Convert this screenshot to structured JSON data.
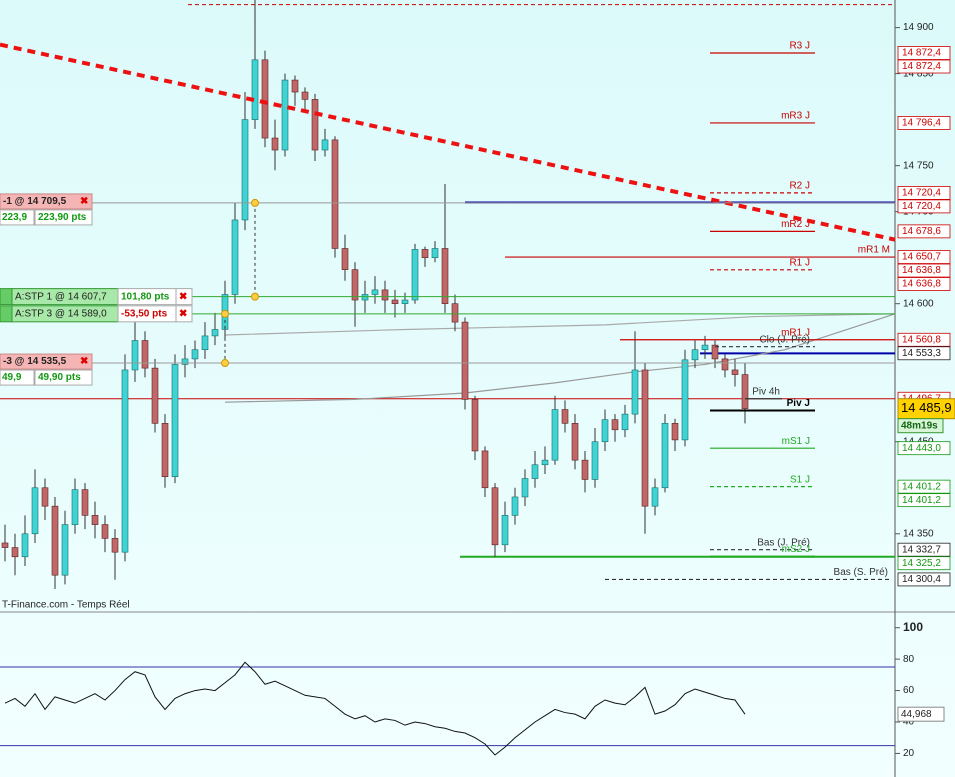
{
  "chart_data": {
    "type": "candlestick",
    "ylim": [
      14265,
      14930
    ],
    "yticks": [
      {
        "value": 14900,
        "label": "14 900"
      },
      {
        "value": 14850,
        "label": "14 850"
      },
      {
        "value": 14750,
        "label": "14 750"
      },
      {
        "value": 14700,
        "label": "14 700"
      },
      {
        "value": 14600,
        "label": "14 600"
      },
      {
        "value": 14450,
        "label": "14 450"
      },
      {
        "value": 14350,
        "label": "14 350"
      }
    ],
    "up_color": "#3fd3d3",
    "down_color": "#c06868",
    "candles": {
      "open": [
        14340,
        14335,
        14325,
        14350,
        14400,
        14380,
        14305,
        14360,
        14398,
        14370,
        14360,
        14345,
        14330,
        14528,
        14560,
        14530,
        14470,
        14412,
        14534,
        14540,
        14550,
        14565,
        14572,
        14610,
        14691,
        14800,
        14865,
        14780,
        14767,
        14843,
        14830,
        14822,
        14767,
        14778,
        14660,
        14637,
        14604,
        14610,
        14615,
        14604,
        14600,
        14604,
        14659,
        14650,
        14660,
        14600,
        14580,
        14496,
        14440,
        14400,
        14338,
        14370,
        14390,
        14410,
        14425,
        14430,
        14485,
        14470,
        14430,
        14409,
        14450,
        14474,
        14463,
        14480,
        14528,
        14380,
        14400,
        14470,
        14452,
        14539,
        14550,
        14555,
        14540,
        14528,
        14523
      ],
      "high": [
        14360,
        14350,
        14370,
        14420,
        14410,
        14390,
        14375,
        14410,
        14405,
        14385,
        14370,
        14355,
        14545,
        14580,
        14570,
        14540,
        14480,
        14545,
        14555,
        14560,
        14580,
        14590,
        14625,
        14710,
        14830,
        14930,
        14875,
        14800,
        14850,
        14848,
        14835,
        14828,
        14790,
        14782,
        14675,
        14645,
        14625,
        14630,
        14625,
        14615,
        14612,
        14665,
        14662,
        14668,
        14730,
        14610,
        14585,
        14500,
        14445,
        14405,
        14385,
        14400,
        14420,
        14440,
        14445,
        14500,
        14495,
        14480,
        14440,
        14465,
        14485,
        14480,
        14490,
        14570,
        14535,
        14410,
        14480,
        14475,
        14550,
        14560,
        14565,
        14560,
        14545,
        14540,
        14535
      ],
      "low": [
        14320,
        14305,
        14315,
        14340,
        14365,
        14290,
        14295,
        14350,
        14355,
        14345,
        14330,
        14300,
        14320,
        14515,
        14520,
        14460,
        14400,
        14405,
        14520,
        14530,
        14540,
        14555,
        14560,
        14600,
        14680,
        14790,
        14770,
        14745,
        14760,
        14815,
        14810,
        14755,
        14760,
        14650,
        14625,
        14575,
        14590,
        14600,
        14590,
        14585,
        14590,
        14600,
        14640,
        14645,
        14590,
        14570,
        14485,
        14430,
        14390,
        14325,
        14330,
        14360,
        14380,
        14400,
        14415,
        14425,
        14460,
        14420,
        14395,
        14400,
        14440,
        14450,
        14455,
        14470,
        14350,
        14370,
        14395,
        14440,
        14445,
        14530,
        14540,
        14530,
        14520,
        14510,
        14470
      ],
      "close": [
        14335,
        14325,
        14350,
        14400,
        14380,
        14305,
        14360,
        14398,
        14370,
        14360,
        14345,
        14330,
        14528,
        14560,
        14530,
        14470,
        14412,
        14534,
        14540,
        14550,
        14565,
        14572,
        14610,
        14691,
        14800,
        14865,
        14780,
        14767,
        14843,
        14830,
        14822,
        14767,
        14778,
        14660,
        14637,
        14604,
        14610,
        14615,
        14604,
        14600,
        14604,
        14659,
        14650,
        14660,
        14600,
        14580,
        14496,
        14440,
        14400,
        14338,
        14370,
        14390,
        14410,
        14425,
        14430,
        14485,
        14470,
        14430,
        14409,
        14450,
        14474,
        14463,
        14480,
        14528,
        14380,
        14400,
        14470,
        14452,
        14539,
        14550,
        14555,
        14540,
        14528,
        14523,
        14486
      ]
    },
    "trendline": {
      "x": [
        -0.5,
        89
      ],
      "values": [
        14881.5,
        14669.6
      ],
      "color": "#ee1111"
    },
    "averages": [
      {
        "color": "#999999",
        "x": [
          22,
          35,
          46,
          55,
          63,
          70,
          78,
          89
        ],
        "values": [
          14493,
          14496,
          14503,
          14514,
          14526,
          14534,
          14550,
          14589
        ]
      },
      {
        "color": "#aaaaaa",
        "x": [
          22,
          40,
          60,
          75,
          89
        ],
        "values": [
          14566,
          14572,
          14577,
          14586,
          14589
        ]
      }
    ],
    "lines": [
      {
        "value": 14925,
        "color": "#cc0000",
        "style": "dashed"
      },
      {
        "value": 14710,
        "color": "#0000aa",
        "style": "solid",
        "width": 2
      },
      {
        "value": 14546,
        "color": "#0000aa",
        "style": "solid",
        "width": 2
      },
      {
        "value": 14325,
        "color": "#22aa22",
        "style": "solid",
        "width": 2
      },
      {
        "value": 14496.7,
        "color": "#cc0000",
        "style": "solid"
      }
    ],
    "levels": [
      {
        "name": "R3 J",
        "value": 14872.4,
        "color": "#cc0000",
        "style": "solid"
      },
      {
        "name": "mR3 J",
        "value": 14796.4,
        "color": "#cc0000",
        "style": "solid"
      },
      {
        "name": "R2 J",
        "value": 14720.4,
        "color": "#cc0000",
        "style": "dashed"
      },
      {
        "name": "mR2 J",
        "value": 14678.6,
        "color": "#cc0000",
        "style": "solid"
      },
      {
        "name": "mR1 M",
        "value": 14650.7,
        "color": "#cc0000",
        "style": "solid"
      },
      {
        "name": "R1 J",
        "value": 14636.8,
        "color": "#cc0000",
        "style": "dashed"
      },
      {
        "name": "mR1 J",
        "value": 14560.8,
        "color": "#cc0000",
        "style": "solid"
      },
      {
        "name": "Clo (J. Pré)",
        "value": 14553.3,
        "color": "#333333",
        "style": "dashed"
      },
      {
        "name": "Piv 4h",
        "value": 14496.7,
        "color": "#333333",
        "style": "solid"
      },
      {
        "name": "Piv J",
        "value": 14484,
        "color": "#000000",
        "style": "solid"
      },
      {
        "name": "mS1 J",
        "value": 14443.0,
        "color": "#22aa22",
        "style": "solid"
      },
      {
        "name": "S1 J",
        "value": 14401.2,
        "color": "#22aa22",
        "style": "dashed"
      },
      {
        "name": "Bas (J. Pré)",
        "value": 14332.7,
        "color": "#333333",
        "style": "dashed"
      },
      {
        "name": "mS2 J",
        "value": 14325.2,
        "color": "#22aa22",
        "style": "solid"
      },
      {
        "name": "Bas (S. Pré)",
        "value": 14300.4,
        "color": "#333333",
        "style": "dashed"
      }
    ],
    "price_labels": [
      {
        "value": 14872.4,
        "label": "14 872,4",
        "color": "#cc0000"
      },
      {
        "value": 14872.4,
        "label": "14 872,4",
        "color": "#cc0000"
      },
      {
        "value": 14796.4,
        "label": "14 796,4",
        "color": "#cc0000"
      },
      {
        "value": 14720.4,
        "label": "14 720,4",
        "color": "#cc0000"
      },
      {
        "value": 14720.4,
        "label": "14 720,4",
        "color": "#cc0000"
      },
      {
        "value": 14678.6,
        "label": "14 678,6",
        "color": "#cc0000"
      },
      {
        "value": 14650.7,
        "label": "14 650,7",
        "color": "#cc0000"
      },
      {
        "value": 14636.8,
        "label": "14 636,8",
        "color": "#cc0000"
      },
      {
        "value": 14636.8,
        "label": "14 636,8",
        "color": "#cc0000"
      },
      {
        "value": 14560.8,
        "label": "14 560,8",
        "color": "#cc0000"
      },
      {
        "value": 14553.3,
        "label": "14 553,3",
        "color": "#222222"
      },
      {
        "value": 14496.7,
        "label": "14 496,7",
        "color": "#cc0000"
      },
      {
        "value": 14443.0,
        "label": "14 443,0",
        "color": "#119911"
      },
      {
        "value": 14401.2,
        "label": "14 401,2",
        "color": "#119911"
      },
      {
        "value": 14401.2,
        "label": "14 401,2",
        "color": "#119911"
      },
      {
        "value": 14332.7,
        "label": "14 332,7",
        "color": "#222222"
      },
      {
        "value": 14325.2,
        "label": "14 325,2",
        "color": "#119911"
      },
      {
        "value": 14300.4,
        "label": "14 300,4",
        "color": "#222222"
      }
    ],
    "current_price": {
      "value": 14485.9,
      "label": "14 485,9",
      "timer": "48m19s"
    },
    "orders": [
      {
        "kind": "position",
        "label": "-1 @ 14 709,5",
        "value": 14709.5,
        "qty": "223,9",
        "pts": "223,90 pts"
      },
      {
        "kind": "stop",
        "label": "A:STP 1 @ 14 607,7",
        "value": 14607.7,
        "pts": "101,80 pts"
      },
      {
        "kind": "stop",
        "label": "A:STP 3 @ 14 589,0",
        "value": 14589.0,
        "pts": "-53,50 pts"
      },
      {
        "kind": "position",
        "label": "-3 @ 14 535,5",
        "value": 14535.5,
        "qty": "49,9",
        "pts": "49,90 pts"
      }
    ],
    "source": "T-Finance.com - Temps Réel",
    "oscillator": {
      "type": "line",
      "color": "#111111",
      "ylim": [
        5,
        110
      ],
      "yticks": [
        100,
        80,
        60,
        40,
        20
      ],
      "bands": [
        75,
        25
      ],
      "band_color": "#3333aa",
      "values": [
        52,
        55,
        50,
        58,
        48,
        56,
        54,
        52,
        55,
        58,
        54,
        60,
        67,
        72,
        70,
        56,
        48,
        55,
        58,
        60,
        61,
        60,
        65,
        70,
        78,
        72,
        64,
        66,
        63,
        60,
        57,
        56,
        55,
        50,
        45,
        42,
        44,
        40,
        42,
        41,
        38,
        40,
        39,
        37,
        36,
        34,
        33,
        30,
        26,
        19,
        24,
        30,
        35,
        40,
        44,
        48,
        46,
        45,
        42,
        50,
        54,
        52,
        51,
        56,
        62,
        45,
        47,
        51,
        58,
        61,
        59,
        57,
        55,
        54,
        44.968
      ],
      "current": {
        "value": 44.968,
        "label": "44,968"
      }
    }
  }
}
